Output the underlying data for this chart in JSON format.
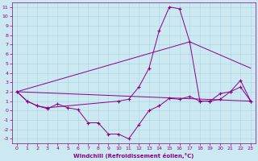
{
  "background_color": "#cce8f0",
  "grid_color": "#b0d8e8",
  "line_color": "#880088",
  "xlabel": "Windchill (Refroidissement éolien,°C)",
  "xlim": [
    -0.5,
    23.5
  ],
  "ylim": [
    -3.5,
    11.5
  ],
  "xticks": [
    0,
    1,
    2,
    3,
    4,
    5,
    6,
    7,
    8,
    9,
    10,
    11,
    12,
    13,
    14,
    15,
    16,
    17,
    18,
    19,
    20,
    21,
    22,
    23
  ],
  "yticks": [
    -3,
    -2,
    -1,
    0,
    1,
    2,
    3,
    4,
    5,
    6,
    7,
    8,
    9,
    10,
    11
  ],
  "series1_x": [
    0,
    1,
    2,
    3,
    4,
    5,
    6,
    7,
    8,
    9,
    10,
    11,
    12,
    13,
    14,
    15,
    16,
    17,
    18,
    19,
    20,
    21,
    22,
    23
  ],
  "series1_y": [
    2,
    1,
    0.5,
    0.2,
    0.7,
    0.3,
    0.1,
    -1.3,
    -1.3,
    -2.5,
    -2.5,
    -3.0,
    -1.5,
    0.0,
    0.5,
    1.3,
    1.2,
    1.5,
    1.0,
    1.0,
    1.8,
    2.0,
    3.2,
    1.0
  ],
  "series2_x": [
    0,
    1,
    2,
    3,
    10,
    11,
    12,
    13,
    14,
    15,
    16,
    17,
    18,
    19,
    20,
    21,
    22,
    23
  ],
  "series2_y": [
    2,
    1,
    0.5,
    0.3,
    1.0,
    1.2,
    2.5,
    4.5,
    8.5,
    11.0,
    10.8,
    7.3,
    1.0,
    1.0,
    1.2,
    2.0,
    2.5,
    1.0
  ],
  "series3_x": [
    0,
    23
  ],
  "series3_y": [
    2,
    1.0
  ],
  "series4_x": [
    0,
    17,
    23
  ],
  "series4_y": [
    2,
    7.3,
    4.5
  ]
}
